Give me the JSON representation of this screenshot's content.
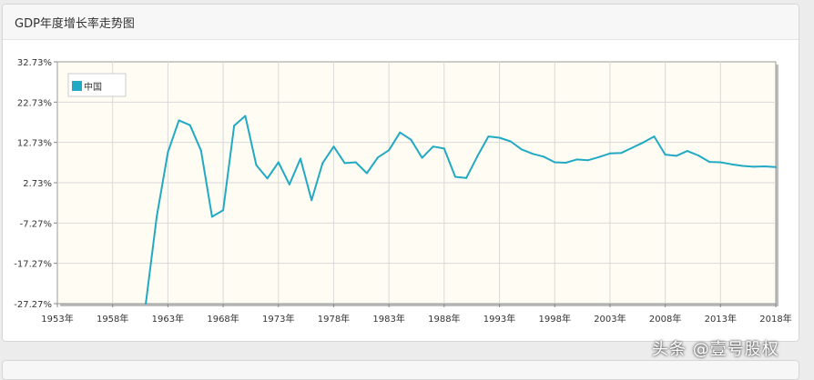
{
  "panel": {
    "title": "GDP年度增长率走势图"
  },
  "watermark": "头条 @壹号股权",
  "colors": {
    "line": "#22a9c4",
    "plot_bg": "#fffdf3",
    "grid": "#d8d8d8",
    "axis": "#888888"
  },
  "chart_data": {
    "type": "line",
    "title": "GDP年度增长率走势图",
    "xlabel": "",
    "ylabel": "",
    "ylim": [
      -27.27,
      32.73
    ],
    "xlim": [
      1953,
      2018
    ],
    "y_ticks": [
      "32.73%",
      "22.73%",
      "12.73%",
      "2.73%",
      "-7.27%",
      "-17.27%",
      "-27.27%"
    ],
    "x_ticks": [
      "1953年",
      "1958年",
      "1963年",
      "1968年",
      "1973年",
      "1978年",
      "1983年",
      "1988年",
      "1993年",
      "1998年",
      "2003年",
      "2008年",
      "2013年",
      "2018年"
    ],
    "legend": {
      "position": "top-left",
      "entries": [
        "中国"
      ]
    },
    "grid": true,
    "series": [
      {
        "name": "中国",
        "x": [
          1961,
          1962,
          1963,
          1964,
          1965,
          1966,
          1967,
          1968,
          1969,
          1970,
          1971,
          1972,
          1973,
          1974,
          1975,
          1976,
          1977,
          1978,
          1979,
          1980,
          1981,
          1982,
          1983,
          1984,
          1985,
          1986,
          1987,
          1988,
          1989,
          1990,
          1991,
          1992,
          1993,
          1994,
          1995,
          1996,
          1997,
          1998,
          1999,
          2000,
          2001,
          2002,
          2003,
          2004,
          2005,
          2006,
          2007,
          2008,
          2009,
          2010,
          2011,
          2012,
          2013,
          2014,
          2015,
          2016,
          2017,
          2018
        ],
        "values": [
          -27.3,
          -5.6,
          10.3,
          18.2,
          17.0,
          10.7,
          -5.7,
          -4.1,
          16.9,
          19.3,
          7.1,
          3.8,
          7.8,
          2.3,
          8.7,
          -1.6,
          7.6,
          11.7,
          7.6,
          7.8,
          5.1,
          9.0,
          10.8,
          15.2,
          13.4,
          8.9,
          11.7,
          11.2,
          4.2,
          3.9,
          9.3,
          14.2,
          13.9,
          13.0,
          11.0,
          9.9,
          9.2,
          7.8,
          7.7,
          8.5,
          8.3,
          9.1,
          10.0,
          10.1,
          11.4,
          12.7,
          14.2,
          9.7,
          9.4,
          10.6,
          9.5,
          7.9,
          7.8,
          7.3,
          6.9,
          6.7,
          6.8,
          6.6
        ]
      }
    ]
  }
}
